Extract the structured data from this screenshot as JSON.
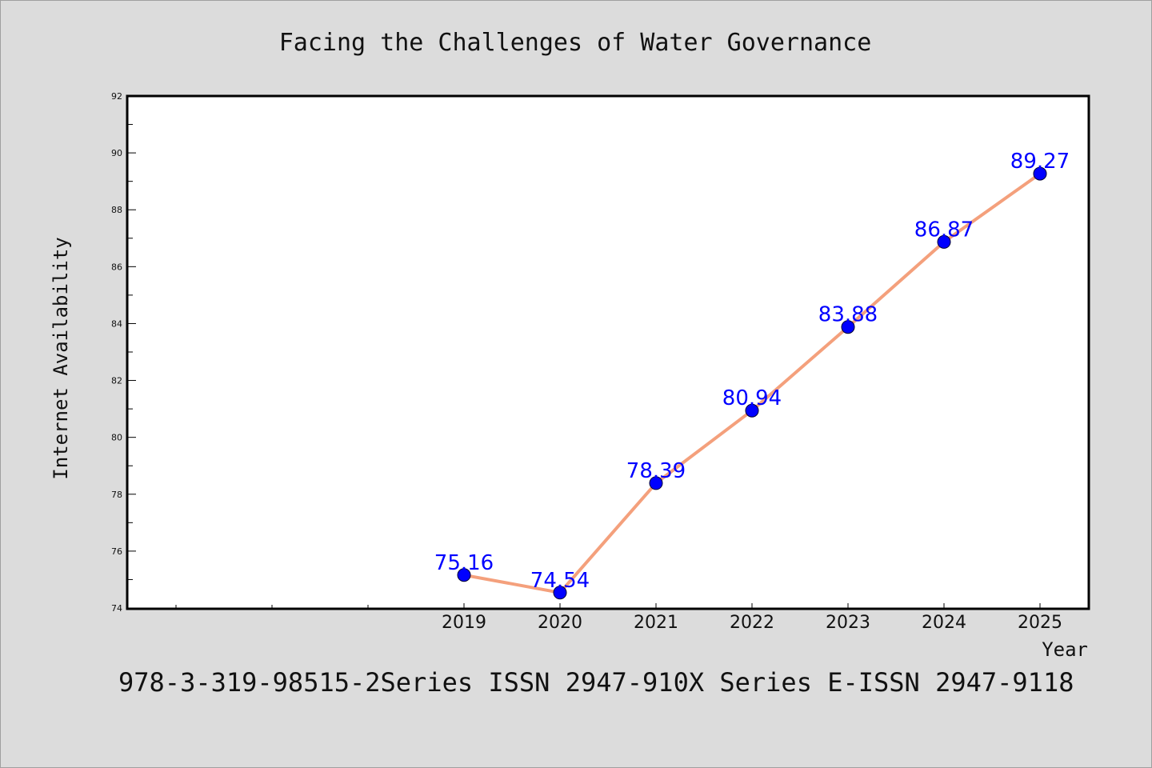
{
  "title": "Facing the Challenges of Water Governance",
  "footer": "978-3-319-98515-2Series ISSN 2947-910X Series E-ISSN 2947-9118",
  "colors": {
    "background": "#dcdcdc",
    "plot_background": "#ffffff",
    "line": "#f4a07c",
    "marker": "#0000ff",
    "data_label": "#0000ff"
  },
  "chart_data": {
    "type": "line",
    "title": "Facing the Challenges of Water Governance",
    "xlabel": "Year",
    "ylabel": "Internet Availability",
    "x": [
      "2019",
      "2020",
      "2021",
      "2022",
      "2023",
      "2024",
      "2025"
    ],
    "values": [
      75.16,
      74.54,
      78.39,
      80.94,
      83.88,
      86.87,
      89.27
    ],
    "data_labels": [
      "75.16",
      "74.54",
      "78.39",
      "80.94",
      "83.88",
      "86.87",
      "89.27"
    ],
    "ylim": [
      74,
      92
    ],
    "yticks": [
      "74",
      "76",
      "78",
      "80",
      "82",
      "84",
      "86",
      "88",
      "90",
      "92"
    ],
    "grid": false,
    "legend": "none",
    "marker": "circle"
  }
}
